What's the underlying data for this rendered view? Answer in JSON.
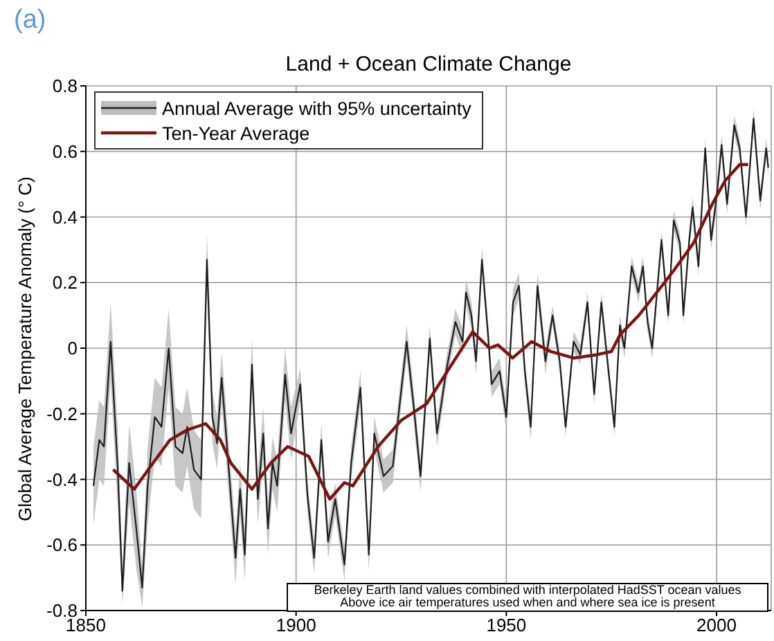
{
  "chart_data": {
    "type": "line",
    "title": "Land + Ocean Climate Change",
    "ylabel": "Global Average Temperature Anomaly (° C)",
    "annotations": [
      "(a)",
      "Berkeley Earth land values combined with interpolated HadSST ocean values",
      "Above ice air temperatures used when and where sea ice is present"
    ],
    "xlim": [
      1850,
      2013
    ],
    "xticks": [
      1850,
      1900,
      1950,
      2000
    ],
    "ylim": [
      -0.8,
      0.8
    ],
    "yticks": [
      -0.8,
      -0.6,
      -0.4,
      -0.2,
      0,
      0.2,
      0.4,
      0.6,
      0.8
    ],
    "grid": true,
    "legend": "top left",
    "marker": "none",
    "line_style": "solid",
    "series": [
      {
        "name": "Annual Average with 95% uncertainty",
        "color": "#1e1e1e",
        "x": [
          1851.8,
          1853.2,
          1854.3,
          1855.9,
          1857.6,
          1858.7,
          1860.3,
          1862,
          1863.4,
          1864.7,
          1866.4,
          1868,
          1869.7,
          1871.3,
          1873,
          1874.1,
          1875.7,
          1877.4,
          1878.8,
          1880.1,
          1881.2,
          1882.3,
          1884,
          1885.6,
          1886.7,
          1887.8,
          1889.5,
          1890.9,
          1892.2,
          1893.3,
          1894.4,
          1895.5,
          1897.4,
          1898.8,
          1901,
          1902.7,
          1904.3,
          1906,
          1907.6,
          1909.3,
          1911.5,
          1913.1,
          1915.3,
          1917.3,
          1918.6,
          1920.8,
          1923,
          1926.3,
          1928,
          1929.6,
          1931.8,
          1933.5,
          1935.7,
          1937.9,
          1939.6,
          1940.4,
          1941.7,
          1942.8,
          1944.2,
          1945.6,
          1946.5,
          1948.4,
          1950,
          1951.6,
          1953,
          1954.4,
          1955.8,
          1957.4,
          1959.3,
          1961,
          1962.7,
          1964.1,
          1966,
          1967.6,
          1969.3,
          1970.9,
          1972.6,
          1974.3,
          1975.7,
          1977,
          1978.1,
          1979.8,
          1981.4,
          1982.5,
          1983.6,
          1984.7,
          1986.9,
          1988.5,
          1989.8,
          1991.3,
          1992.1,
          1993.5,
          1994.3,
          1995.7,
          1997.3,
          1998.7,
          2000.1,
          2001.2,
          2002.5,
          2004.2,
          2005.5,
          2007,
          2008.8,
          2010.4,
          2011.8,
          2012.3
        ],
        "values": [
          -0.42,
          -0.28,
          -0.3,
          0.02,
          -0.37,
          -0.74,
          -0.35,
          -0.55,
          -0.73,
          -0.42,
          -0.21,
          -0.24,
          0.0,
          -0.3,
          -0.32,
          -0.24,
          -0.37,
          -0.4,
          0.27,
          -0.21,
          -0.29,
          -0.09,
          -0.37,
          -0.64,
          -0.43,
          -0.63,
          -0.05,
          -0.46,
          -0.26,
          -0.55,
          -0.35,
          -0.42,
          -0.08,
          -0.26,
          -0.11,
          -0.45,
          -0.64,
          -0.28,
          -0.59,
          -0.46,
          -0.66,
          -0.35,
          -0.12,
          -0.63,
          -0.26,
          -0.39,
          -0.36,
          0.02,
          -0.18,
          -0.39,
          0.03,
          -0.26,
          -0.07,
          0.08,
          0.02,
          0.17,
          0.1,
          -0.04,
          0.27,
          0.05,
          -0.11,
          -0.07,
          -0.21,
          0.14,
          0.19,
          -0.07,
          -0.24,
          0.19,
          -0.04,
          0.1,
          -0.04,
          -0.24,
          0.02,
          -0.02,
          0.14,
          -0.14,
          0.14,
          -0.07,
          -0.24,
          0.07,
          0.0,
          0.25,
          0.17,
          0.25,
          0.08,
          0.0,
          0.33,
          0.1,
          0.39,
          0.32,
          0.1,
          0.33,
          0.43,
          0.25,
          0.61,
          0.33,
          0.47,
          0.62,
          0.44,
          0.68,
          0.61,
          0.4,
          0.7,
          0.45,
          0.61,
          0.55
        ],
        "lower": [
          -0.54,
          -0.4,
          -0.42,
          -0.1,
          -0.49,
          -0.78,
          -0.47,
          -0.67,
          -0.79,
          -0.54,
          -0.33,
          -0.36,
          -0.12,
          -0.42,
          -0.44,
          -0.36,
          -0.49,
          -0.52,
          0.19,
          -0.29,
          -0.37,
          -0.17,
          -0.45,
          -0.72,
          -0.51,
          -0.71,
          -0.13,
          -0.54,
          -0.34,
          -0.63,
          -0.43,
          -0.5,
          -0.16,
          -0.34,
          -0.16,
          -0.5,
          -0.69,
          -0.33,
          -0.64,
          -0.51,
          -0.71,
          -0.4,
          -0.17,
          -0.68,
          -0.31,
          -0.44,
          -0.41,
          -0.03,
          -0.23,
          -0.44,
          -0.01,
          -0.3,
          -0.11,
          0.04,
          -0.02,
          0.13,
          0.06,
          -0.08,
          0.23,
          0.01,
          -0.15,
          -0.11,
          -0.25,
          0.1,
          0.15,
          -0.11,
          -0.28,
          0.15,
          -0.08,
          0.07,
          -0.07,
          -0.27,
          -0.01,
          -0.05,
          0.11,
          -0.17,
          0.11,
          -0.1,
          -0.27,
          0.04,
          -0.03,
          0.22,
          0.14,
          0.22,
          0.05,
          -0.03,
          0.3,
          0.07,
          0.36,
          0.29,
          0.07,
          0.3,
          0.4,
          0.22,
          0.58,
          0.3,
          0.44,
          0.59,
          0.41,
          0.65,
          0.58,
          0.37,
          0.67,
          0.42,
          0.58,
          0.52
        ],
        "upper": [
          -0.3,
          -0.16,
          -0.18,
          0.14,
          -0.25,
          -0.66,
          -0.23,
          -0.43,
          -0.67,
          -0.3,
          -0.09,
          -0.12,
          0.12,
          -0.18,
          -0.2,
          -0.12,
          -0.25,
          -0.28,
          0.35,
          -0.13,
          -0.21,
          -0.01,
          -0.29,
          -0.56,
          -0.35,
          -0.55,
          0.03,
          -0.38,
          -0.18,
          -0.47,
          -0.27,
          -0.34,
          0.0,
          -0.18,
          -0.06,
          -0.4,
          -0.59,
          -0.23,
          -0.54,
          -0.41,
          -0.61,
          -0.3,
          -0.07,
          -0.58,
          -0.21,
          -0.34,
          -0.31,
          0.07,
          -0.13,
          -0.34,
          0.07,
          -0.22,
          -0.03,
          0.12,
          0.06,
          0.21,
          0.14,
          0.0,
          0.31,
          0.09,
          -0.07,
          -0.03,
          -0.17,
          0.18,
          0.23,
          -0.03,
          -0.2,
          0.23,
          0.0,
          0.13,
          -0.01,
          -0.21,
          0.05,
          0.01,
          0.17,
          -0.11,
          0.17,
          -0.04,
          -0.21,
          0.1,
          0.03,
          0.28,
          0.2,
          0.28,
          0.11,
          0.03,
          0.36,
          0.13,
          0.42,
          0.35,
          0.13,
          0.36,
          0.46,
          0.28,
          0.64,
          0.36,
          0.5,
          0.65,
          0.47,
          0.71,
          0.64,
          0.43,
          0.73,
          0.48,
          0.64,
          0.58
        ]
      },
      {
        "name": "Ten-Year Average",
        "color": "#7b1414",
        "x": [
          1856.5,
          1861.5,
          1866,
          1870,
          1874,
          1878.5,
          1882,
          1884.5,
          1889.5,
          1894,
          1898,
          1903,
          1908,
          1911.5,
          1913.5,
          1919.5,
          1925,
          1931,
          1936,
          1942,
          1946,
          1948,
          1951.5,
          1956,
          1960.5,
          1966,
          1971.5,
          1975,
          1977,
          1981.5,
          1987,
          1990,
          1994.5,
          1999,
          2002,
          2005.5,
          2007.5
        ],
        "values": [
          -0.37,
          -0.43,
          -0.35,
          -0.28,
          -0.25,
          -0.23,
          -0.28,
          -0.35,
          -0.43,
          -0.35,
          -0.3,
          -0.33,
          -0.46,
          -0.41,
          -0.42,
          -0.3,
          -0.22,
          -0.17,
          -0.07,
          0.05,
          0.0,
          0.01,
          -0.03,
          0.02,
          -0.01,
          -0.03,
          -0.02,
          -0.01,
          0.04,
          0.1,
          0.19,
          0.24,
          0.32,
          0.44,
          0.51,
          0.56,
          0.56
        ]
      }
    ]
  }
}
